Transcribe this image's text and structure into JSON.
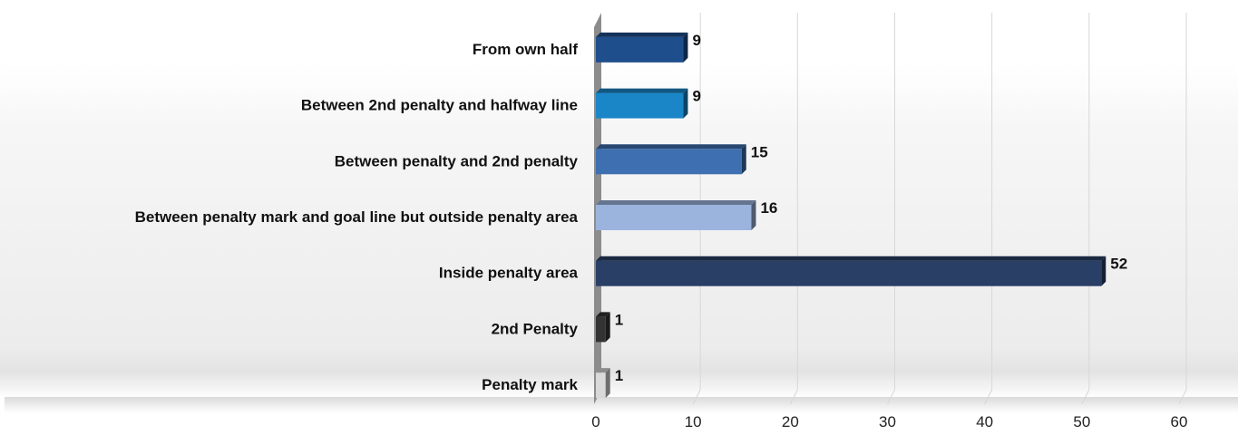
{
  "chart_data": {
    "type": "bar",
    "orientation": "horizontal",
    "categories": [
      "From own half",
      "Between 2nd penalty and halfway line",
      "Between penalty and 2nd penalty",
      "Between penalty mark and goal line but outside penalty area",
      "Inside penalty area",
      "2nd Penalty",
      "Penalty mark"
    ],
    "values": [
      9,
      9,
      15,
      16,
      52,
      1,
      1
    ],
    "bar_colors": [
      "#1f4e8c",
      "#1a86c8",
      "#3e6fb0",
      "#9bb4dd",
      "#2a3f66",
      "#333333",
      "#d9d9d9"
    ],
    "data_labels": [
      "9",
      "9",
      "15",
      "16",
      "52",
      "1",
      "1"
    ],
    "xlim": [
      0,
      60
    ],
    "x_ticks": [
      "0",
      "10",
      "20",
      "30",
      "40",
      "50",
      "60"
    ],
    "grid": "vertical",
    "legend": "none"
  }
}
